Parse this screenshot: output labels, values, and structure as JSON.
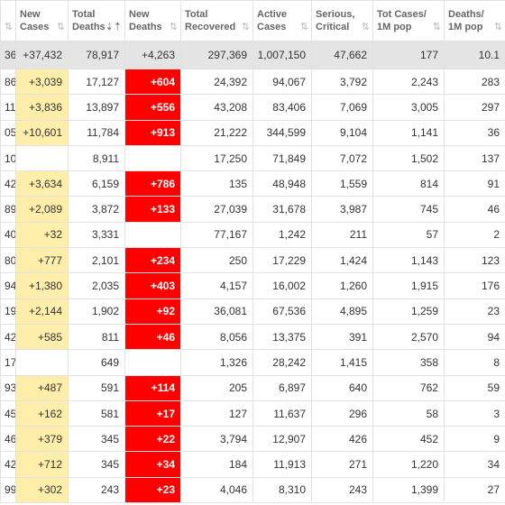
{
  "table": {
    "columns": [
      [
        "New",
        "Cases"
      ],
      [
        "Total",
        "Deaths"
      ],
      [
        "New",
        "Deaths"
      ],
      [
        "Total",
        "Recovered"
      ],
      [
        "Active",
        "Cases"
      ],
      [
        "Serious,",
        "Critical"
      ],
      [
        "Tot Cases/",
        "1M pop"
      ],
      [
        "Deaths/",
        "1M pop"
      ]
    ],
    "total": [
      "36",
      "+37,432",
      "78,917",
      "+4,263",
      "297,369",
      "1,007,150",
      "47,662",
      "177",
      "10.1"
    ],
    "rows": [
      [
        "86",
        "+3,039",
        "17,127",
        "+604",
        "24,392",
        "94,067",
        "3,792",
        "2,243",
        "283"
      ],
      [
        "11",
        "+3,836",
        "13,897",
        "+556",
        "43,208",
        "83,406",
        "7,069",
        "3,005",
        "297"
      ],
      [
        "05",
        "+10,601",
        "11,784",
        "+913",
        "21,222",
        "344,599",
        "9,104",
        "1,141",
        "36"
      ],
      [
        "10",
        null,
        "8,911",
        null,
        "17,250",
        "71,849",
        "7,072",
        "1,502",
        "137"
      ],
      [
        "42",
        "+3,634",
        "6,159",
        "+786",
        "135",
        "48,948",
        "1,559",
        "814",
        "91"
      ],
      [
        "89",
        "+2,089",
        "3,872",
        "+133",
        "27,039",
        "31,678",
        "3,987",
        "745",
        "46"
      ],
      [
        "40",
        "+32",
        "3,331",
        null,
        "77,167",
        "1,242",
        "211",
        "57",
        "2"
      ],
      [
        "80",
        "+777",
        "2,101",
        "+234",
        "250",
        "17,229",
        "1,424",
        "1,143",
        "123"
      ],
      [
        "94",
        "+1,380",
        "2,035",
        "+403",
        "4,157",
        "16,002",
        "1,260",
        "1,915",
        "176"
      ],
      [
        "19",
        "+2,144",
        "1,902",
        "+92",
        "36,081",
        "67,536",
        "4,895",
        "1,259",
        "23"
      ],
      [
        "42",
        "+585",
        "811",
        "+46",
        "8,056",
        "13,375",
        "391",
        "2,570",
        "94"
      ],
      [
        "17",
        null,
        "649",
        null,
        "1,326",
        "28,242",
        "1,415",
        "358",
        "8"
      ],
      [
        "93",
        "+487",
        "591",
        "+114",
        "205",
        "6,897",
        "640",
        "762",
        "59"
      ],
      [
        "45",
        "+162",
        "581",
        "+17",
        "127",
        "11,637",
        "296",
        "58",
        "3"
      ],
      [
        "46",
        "+379",
        "345",
        "+22",
        "3,794",
        "12,907",
        "426",
        "452",
        "9"
      ],
      [
        "42",
        "+712",
        "345",
        "+34",
        "184",
        "11,913",
        "271",
        "1,220",
        "34"
      ],
      [
        "99",
        "+302",
        "243",
        "+23",
        "4,046",
        "8,310",
        "243",
        "1,399",
        "27"
      ]
    ]
  }
}
